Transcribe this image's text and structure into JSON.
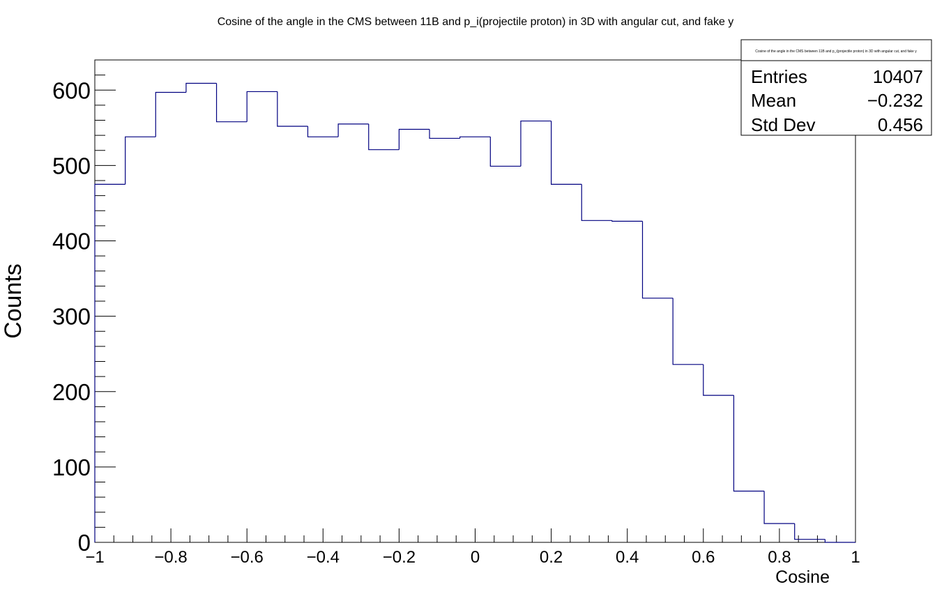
{
  "chart_data": {
    "type": "histogram",
    "title": "Cosine of the angle in the CMS between 11B and p_i(projectile proton) in 3D with angular cut, and fake y",
    "xlabel": "Cosine",
    "ylabel": "Counts",
    "xlim": [
      -1,
      1
    ],
    "ylim": [
      0,
      640
    ],
    "x_ticks": [
      "−1",
      "−0.8",
      "−0.6",
      "−0.4",
      "−0.2",
      "0",
      "0.2",
      "0.4",
      "0.6",
      "0.8",
      "1"
    ],
    "x_tick_values": [
      -1,
      -0.8,
      -0.6,
      -0.4,
      -0.2,
      0,
      0.2,
      0.4,
      0.6,
      0.8,
      1
    ],
    "y_ticks": [
      "0",
      "100",
      "200",
      "300",
      "400",
      "500",
      "600"
    ],
    "y_tick_values": [
      0,
      100,
      200,
      300,
      400,
      500,
      600
    ],
    "bin_edges": [
      -1,
      -0.92,
      -0.84,
      -0.76,
      -0.68,
      -0.6,
      -0.52,
      -0.44,
      -0.36,
      -0.28,
      -0.2,
      -0.12,
      -0.04,
      0.04,
      0.12,
      0.2,
      0.28,
      0.36,
      0.44,
      0.52,
      0.6,
      0.68,
      0.76,
      0.84,
      0.92,
      1
    ],
    "values": [
      475,
      538,
      597,
      609,
      558,
      598,
      552,
      538,
      555,
      521,
      548,
      536,
      538,
      499,
      559,
      475,
      427,
      426,
      324,
      236,
      195,
      68,
      25,
      4,
      0
    ],
    "line_color": "#000080",
    "stats_box": {
      "title": "Cosine of the angle in the CMS between 11B and p_i(projectile proton) in 3D with angular cut, and fake y",
      "rows": [
        {
          "label": "Entries",
          "value": "10407"
        },
        {
          "label": "Mean",
          "value": "−0.232"
        },
        {
          "label": "Std Dev",
          "value": "0.456"
        }
      ]
    }
  }
}
